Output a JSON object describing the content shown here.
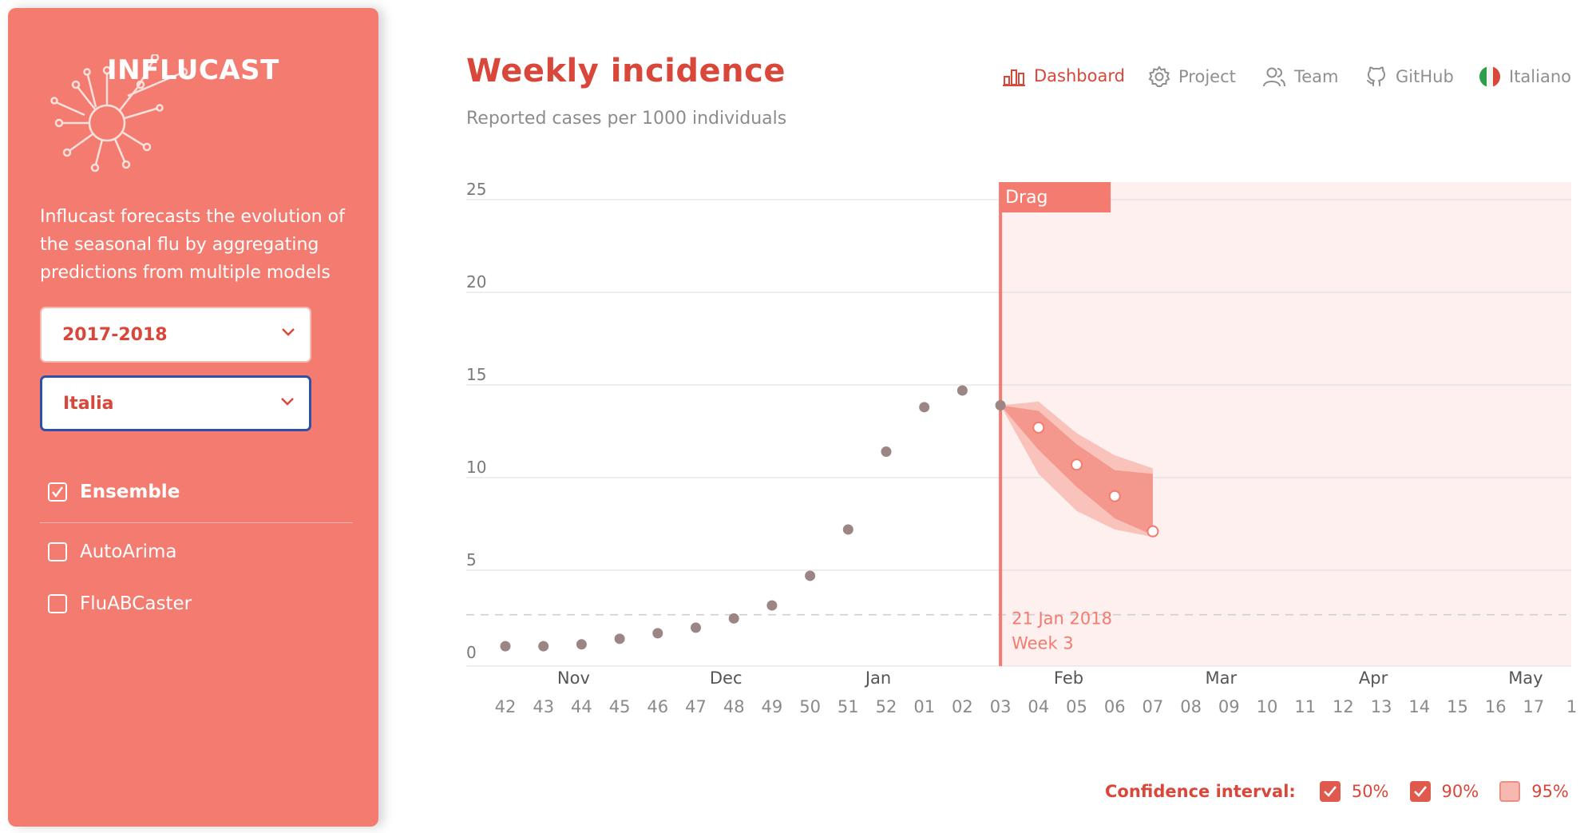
{
  "sidebar": {
    "app_name": "INFLUCAST",
    "description": "Influcast forecasts the evolution of the seasonal flu by aggregating predictions from multiple models",
    "season": "2017-2018",
    "region": "Italia",
    "models": [
      {
        "label": "Ensemble",
        "checked": true
      },
      {
        "label": "AutoArima",
        "checked": false
      },
      {
        "label": "FluABCaster",
        "checked": false
      }
    ]
  },
  "header": {
    "title": "Weekly incidence",
    "subtitle": "Reported cases per 1000 individuals",
    "nav": [
      {
        "label": "Dashboard",
        "icon": "bar-chart-icon",
        "active": true
      },
      {
        "label": "Project",
        "icon": "gear-icon",
        "active": false
      },
      {
        "label": "Team",
        "icon": "users-icon",
        "active": false
      },
      {
        "label": "GitHub",
        "icon": "github-icon",
        "active": false
      },
      {
        "label": "Italiano",
        "icon": "italy-flag-icon",
        "active": false
      }
    ]
  },
  "chart_data": {
    "type": "scatter",
    "title": "Weekly incidence",
    "subtitle": "Reported cases per 1000 individuals",
    "ylim": [
      0,
      25
    ],
    "y_ticks": [
      0,
      5,
      10,
      15,
      20,
      25
    ],
    "x_weeks": [
      "42",
      "43",
      "44",
      "45",
      "46",
      "47",
      "48",
      "49",
      "50",
      "51",
      "52",
      "01",
      "02",
      "03",
      "04",
      "05",
      "06",
      "07",
      "08",
      "09",
      "10",
      "11",
      "12",
      "13",
      "14",
      "15",
      "16",
      "17",
      "1"
    ],
    "month_labels": [
      {
        "label": "Nov",
        "week": "44"
      },
      {
        "label": "Dec",
        "week": "48"
      },
      {
        "label": "Jan",
        "week": "52"
      },
      {
        "label": "Feb",
        "week": "05"
      },
      {
        "label": "Mar",
        "week": "09"
      },
      {
        "label": "Apr",
        "week": "13"
      },
      {
        "label": "May",
        "week": "17"
      }
    ],
    "observed": [
      {
        "week": "42",
        "value": 0.9
      },
      {
        "week": "43",
        "value": 0.9
      },
      {
        "week": "44",
        "value": 1.0
      },
      {
        "week": "45",
        "value": 1.3
      },
      {
        "week": "46",
        "value": 1.6
      },
      {
        "week": "47",
        "value": 1.9
      },
      {
        "week": "48",
        "value": 2.4
      },
      {
        "week": "49",
        "value": 3.1
      },
      {
        "week": "50",
        "value": 4.7
      },
      {
        "week": "51",
        "value": 7.2
      },
      {
        "week": "52",
        "value": 11.4
      },
      {
        "week": "01",
        "value": 13.8
      },
      {
        "week": "02",
        "value": 14.7
      },
      {
        "week": "03",
        "value": 13.9
      }
    ],
    "forecast": [
      {
        "week": "03",
        "value": 13.9,
        "lo50": 13.9,
        "hi50": 13.9,
        "lo90": 13.9,
        "hi90": 13.9
      },
      {
        "week": "04",
        "value": 12.7,
        "lo50": 11.5,
        "hi50": 13.6,
        "lo90": 10.2,
        "hi90": 14.1
      },
      {
        "week": "05",
        "value": 10.7,
        "lo50": 9.5,
        "hi50": 11.8,
        "lo90": 8.2,
        "hi90": 12.4
      },
      {
        "week": "06",
        "value": 9.0,
        "lo50": 7.8,
        "hi50": 10.4,
        "lo90": 7.2,
        "hi90": 11.2
      },
      {
        "week": "07",
        "value": 7.1,
        "lo50": 6.9,
        "hi50": 10.2,
        "lo90": 6.8,
        "hi90": 10.5
      }
    ],
    "threshold": 2.6,
    "current_week": "03",
    "current_date_label": "21 Jan 2018",
    "current_week_label": "Week 3",
    "drag_label": "Drag",
    "confidence_interval": {
      "label": "Confidence interval:",
      "options": [
        {
          "label": "50%",
          "checked": true
        },
        {
          "label": "90%",
          "checked": true
        },
        {
          "label": "95%",
          "checked": false
        }
      ]
    },
    "colors": {
      "observed": "#9b8585",
      "forecast_line": "#f47b6f",
      "band50": "#f4978c",
      "band90": "#f9c2bb",
      "future_bg": "#fdf0ee"
    }
  }
}
